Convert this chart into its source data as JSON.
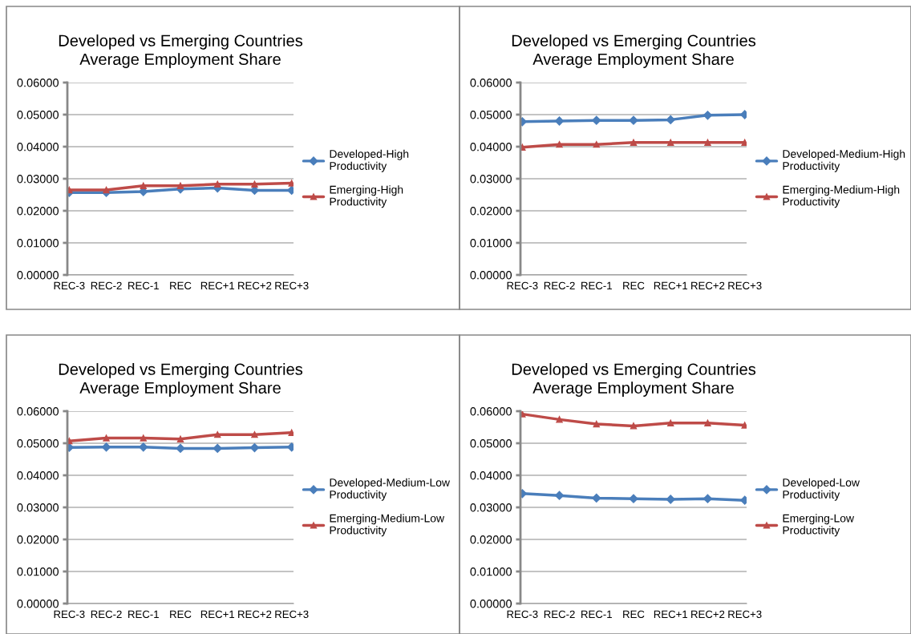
{
  "chart_data": [
    {
      "type": "line",
      "title": "Developed vs Emerging Countries\nAverage Employment Share",
      "categories": [
        "REC-3",
        "REC-2",
        "REC-1",
        "REC",
        "REC+1",
        "REC+2",
        "REC+3"
      ],
      "ylim": [
        0,
        0.06
      ],
      "yticks": [
        {
          "value": 0,
          "label": "0.00000"
        },
        {
          "value": 0.01,
          "label": "0.01000"
        },
        {
          "value": 0.02,
          "label": "0.02000"
        },
        {
          "value": 0.03,
          "label": "0.03000"
        },
        {
          "value": 0.04,
          "label": "0.04000"
        },
        {
          "value": 0.05,
          "label": "0.05000"
        },
        {
          "value": 0.06,
          "label": "0.06000"
        }
      ],
      "grid": "y",
      "legend": "right",
      "series": [
        {
          "name": "Developed-High\nProductivity",
          "color": "#4a7ebb",
          "marker": "diamond",
          "values": [
            0.0257,
            0.0257,
            0.026,
            0.0268,
            0.0271,
            0.0264,
            0.0264
          ]
        },
        {
          "name": "Emerging-High\nProductivity",
          "color": "#be4b48",
          "marker": "triangle",
          "values": [
            0.0265,
            0.0265,
            0.0278,
            0.0278,
            0.0283,
            0.0283,
            0.0286
          ]
        }
      ]
    },
    {
      "type": "line",
      "title": "Developed vs Emerging Countries\nAverage Employment Share",
      "categories": [
        "REC-3",
        "REC-2",
        "REC-1",
        "REC",
        "REC+1",
        "REC+2",
        "REC+3"
      ],
      "ylim": [
        0,
        0.06
      ],
      "yticks": [
        {
          "value": 0,
          "label": "0.00000"
        },
        {
          "value": 0.01,
          "label": "0.01000"
        },
        {
          "value": 0.02,
          "label": "0.02000"
        },
        {
          "value": 0.03,
          "label": "0.03000"
        },
        {
          "value": 0.04,
          "label": "0.04000"
        },
        {
          "value": 0.05,
          "label": "0.05000"
        },
        {
          "value": 0.06,
          "label": "0.06000"
        }
      ],
      "grid": "y",
      "legend": "right",
      "series": [
        {
          "name": "Developed-Medium-High\nProductivity",
          "color": "#4a7ebb",
          "marker": "diamond",
          "values": [
            0.0478,
            0.048,
            0.0482,
            0.0482,
            0.0484,
            0.0498,
            0.05
          ]
        },
        {
          "name": "Emerging-Medium-High\nProductivity",
          "color": "#be4b48",
          "marker": "triangle",
          "values": [
            0.0398,
            0.0407,
            0.0407,
            0.0413,
            0.0413,
            0.0413,
            0.0413
          ]
        }
      ]
    },
    {
      "type": "line",
      "title": "Developed vs Emerging Countries\nAverage Employment Share",
      "categories": [
        "REC-3",
        "REC-2",
        "REC-1",
        "REC",
        "REC+1",
        "REC+2",
        "REC+3"
      ],
      "ylim": [
        0,
        0.06
      ],
      "yticks": [
        {
          "value": 0,
          "label": "0.00000"
        },
        {
          "value": 0.01,
          "label": "0.01000"
        },
        {
          "value": 0.02,
          "label": "0.02000"
        },
        {
          "value": 0.03,
          "label": "0.03000"
        },
        {
          "value": 0.04,
          "label": "0.04000"
        },
        {
          "value": 0.05,
          "label": "0.05000"
        },
        {
          "value": 0.06,
          "label": "0.06000"
        }
      ],
      "grid": "y",
      "legend": "right",
      "series": [
        {
          "name": "Developed-Medium-Low\nProductivity",
          "color": "#4a7ebb",
          "marker": "diamond",
          "values": [
            0.0487,
            0.0488,
            0.0488,
            0.0484,
            0.0484,
            0.0486,
            0.0488
          ]
        },
        {
          "name": "Emerging-Medium-Low\nProductivity",
          "color": "#be4b48",
          "marker": "triangle",
          "values": [
            0.0507,
            0.0516,
            0.0516,
            0.0513,
            0.0527,
            0.0527,
            0.0533
          ]
        }
      ]
    },
    {
      "type": "line",
      "title": "Developed vs Emerging Countries\nAverage Employment Share",
      "categories": [
        "REC-3",
        "REC-2",
        "REC-1",
        "REC",
        "REC+1",
        "REC+2",
        "REC+3"
      ],
      "ylim": [
        0,
        0.06
      ],
      "yticks": [
        {
          "value": 0,
          "label": "0.00000"
        },
        {
          "value": 0.01,
          "label": "0.01000"
        },
        {
          "value": 0.02,
          "label": "0.02000"
        },
        {
          "value": 0.03,
          "label": "0.03000"
        },
        {
          "value": 0.04,
          "label": "0.04000"
        },
        {
          "value": 0.05,
          "label": "0.05000"
        },
        {
          "value": 0.06,
          "label": "0.06000"
        }
      ],
      "grid": "y",
      "legend": "right",
      "series": [
        {
          "name": "Developed-Low\nProductivity",
          "color": "#4a7ebb",
          "marker": "diamond",
          "values": [
            0.0343,
            0.0337,
            0.0329,
            0.0327,
            0.0325,
            0.0327,
            0.0322
          ]
        },
        {
          "name": "Emerging-Low\nProductivity",
          "color": "#be4b48",
          "marker": "triangle",
          "values": [
            0.0591,
            0.0574,
            0.056,
            0.0554,
            0.0563,
            0.0563,
            0.0556
          ]
        }
      ]
    }
  ]
}
